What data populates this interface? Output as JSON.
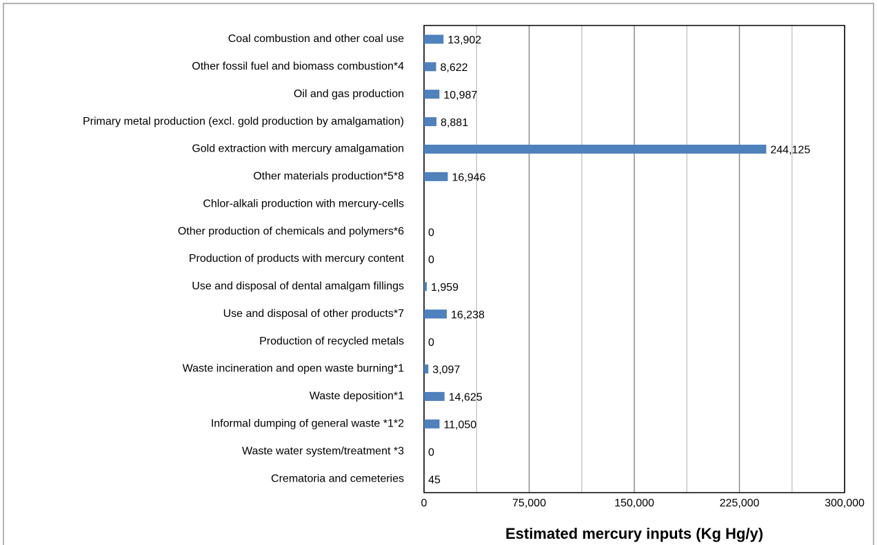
{
  "chart_data": {
    "type": "hbar",
    "xlabel": "Estimated mercury inputs (Kg Hg/y)",
    "categories": [
      "Coal combustion and other coal use",
      "Other fossil fuel and biomass combustion*4",
      "Oil and gas production",
      "Primary metal production (excl. gold production by amalgamation)",
      "Gold extraction with mercury amalgamation",
      "Other materials production*5*8",
      "Chlor-alkali production with mercury-cells",
      "Other production of chemicals and polymers*6",
      "Production of products with mercury content",
      "Use and disposal of dental amalgam fillings",
      "Use and disposal of other products*7",
      "Production of recycled metals",
      "Waste incineration and open waste burning*1",
      "Waste deposition*1",
      "Informal dumping of general waste *1*2",
      "Waste water system/treatment *3",
      "Crematoria and cemeteries"
    ],
    "values": [
      13902,
      8622,
      10987,
      8881,
      244125,
      16946,
      null,
      0,
      0,
      1959,
      16238,
      0,
      3097,
      14625,
      11050,
      0,
      45
    ],
    "value_labels": [
      "13,902",
      "8,622",
      "10,987",
      "8,881",
      "244,125",
      "16,946",
      null,
      "0",
      "0",
      "1,959",
      "16,238",
      "0",
      "3,097",
      "14,625",
      "11,050",
      "0",
      "45"
    ],
    "color": "#4f81bd",
    "xlim": [
      0,
      300000
    ],
    "xticks": [
      0,
      {
        "value": 75000,
        "label": "75,000"
      },
      {
        "value": 150000,
        "label": "150,000"
      },
      {
        "value": 225000,
        "label": "225,000"
      },
      {
        "value": 300000,
        "label": "300,000"
      }
    ],
    "xminorticks": [
      37500,
      112500,
      187500,
      262500
    ],
    "grid": true
  }
}
